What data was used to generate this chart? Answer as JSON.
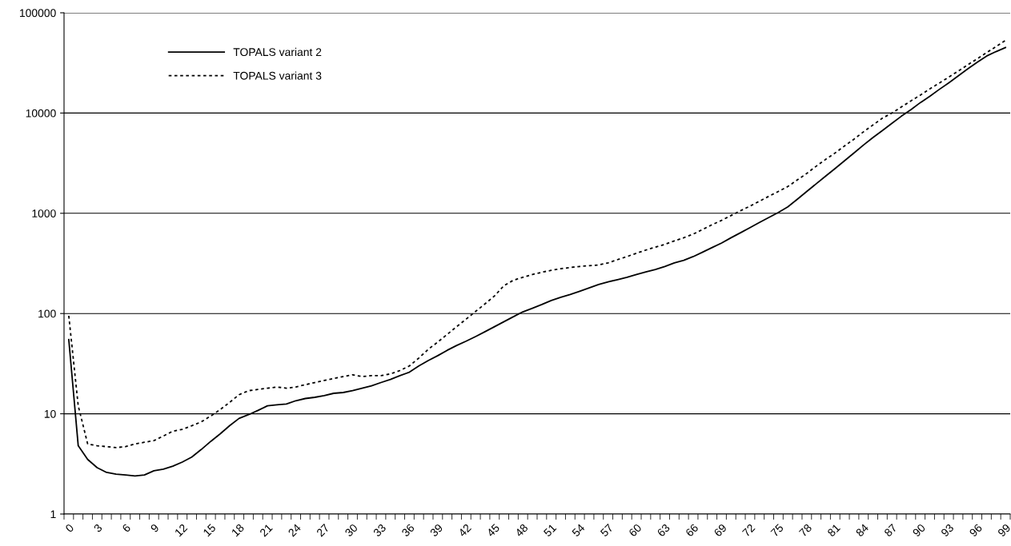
{
  "chart_data": {
    "type": "line",
    "log": "y",
    "categories": [
      "0",
      null,
      null,
      "3",
      null,
      null,
      "6",
      null,
      null,
      "9",
      null,
      null,
      "12",
      null,
      null,
      "15",
      null,
      null,
      "18",
      null,
      null,
      "21",
      null,
      null,
      "24",
      null,
      null,
      "27",
      null,
      null,
      "30",
      null,
      null,
      "33",
      null,
      null,
      "36",
      null,
      null,
      "39",
      null,
      null,
      "42",
      null,
      null,
      "45",
      null,
      null,
      "48",
      null,
      null,
      "51",
      null,
      null,
      "54",
      null,
      null,
      "57",
      null,
      null,
      "60",
      null,
      null,
      "63",
      null,
      null,
      "66",
      null,
      null,
      "69",
      null,
      null,
      "72",
      null,
      null,
      "75",
      null,
      null,
      "78",
      null,
      null,
      "81",
      null,
      null,
      "84",
      null,
      null,
      "87",
      null,
      null,
      "90",
      null,
      null,
      "93",
      null,
      null,
      "96",
      null,
      null,
      "99"
    ],
    "ylim": [
      1,
      100000
    ],
    "yticks": [
      1,
      10,
      100,
      1000,
      10000,
      100000
    ],
    "grid": "y",
    "legend": "top left",
    "series": [
      {
        "name": "TOPALS variant 2",
        "color": "#000000",
        "line_style": "solid",
        "values": [
          55,
          4.8,
          3.5,
          2.9,
          2.6,
          2.5,
          2.45,
          2.4,
          2.45,
          2.7,
          2.8,
          3.0,
          3.3,
          3.7,
          4.4,
          5.3,
          6.3,
          7.6,
          9,
          9.8,
          10.8,
          12,
          12.3,
          12.5,
          13.5,
          14.2,
          14.6,
          15.2,
          16,
          16.3,
          17,
          18,
          19,
          20.5,
          22,
          24,
          26,
          30,
          34,
          38,
          43,
          48,
          53,
          59,
          66,
          74,
          83,
          93,
          104,
          113,
          123,
          135,
          145,
          155,
          167,
          180,
          195,
          207,
          218,
          230,
          245,
          260,
          275,
          295,
          320,
          340,
          370,
          410,
          455,
          505,
          570,
          640,
          720,
          810,
          910,
          1020,
          1160,
          1380,
          1650,
          1970,
          2350,
          2800,
          3350,
          4000,
          4800,
          5700,
          6700,
          7900,
          9300,
          10800,
          12700,
          14700,
          17200,
          20000,
          23400,
          27500,
          32000,
          37000,
          41000,
          45000
        ]
      },
      {
        "name": "TOPALS variant 3",
        "color": "#000000",
        "line_style": "dotted",
        "values": [
          95,
          12,
          5.0,
          4.8,
          4.7,
          4.6,
          4.7,
          5.0,
          5.2,
          5.4,
          6.0,
          6.7,
          7.0,
          7.6,
          8.3,
          9.5,
          11,
          13,
          15.5,
          17,
          17.5,
          18,
          18.5,
          18,
          18.5,
          19.5,
          20.5,
          21.5,
          22.5,
          23.5,
          24.5,
          23.5,
          24,
          24,
          25,
          27,
          30,
          36,
          44,
          52,
          62,
          74,
          88,
          105,
          125,
          150,
          190,
          215,
          230,
          245,
          258,
          270,
          280,
          288,
          295,
          300,
          305,
          320,
          345,
          370,
          400,
          430,
          460,
          490,
          530,
          570,
          620,
          690,
          770,
          850,
          950,
          1060,
          1180,
          1320,
          1480,
          1650,
          1850,
          2150,
          2500,
          2950,
          3450,
          4000,
          4700,
          5500,
          6500,
          7600,
          8900,
          10000,
          11500,
          13200,
          15100,
          17400,
          19900,
          22800,
          26200,
          30200,
          34700,
          40000,
          46000,
          53000
        ]
      }
    ]
  }
}
